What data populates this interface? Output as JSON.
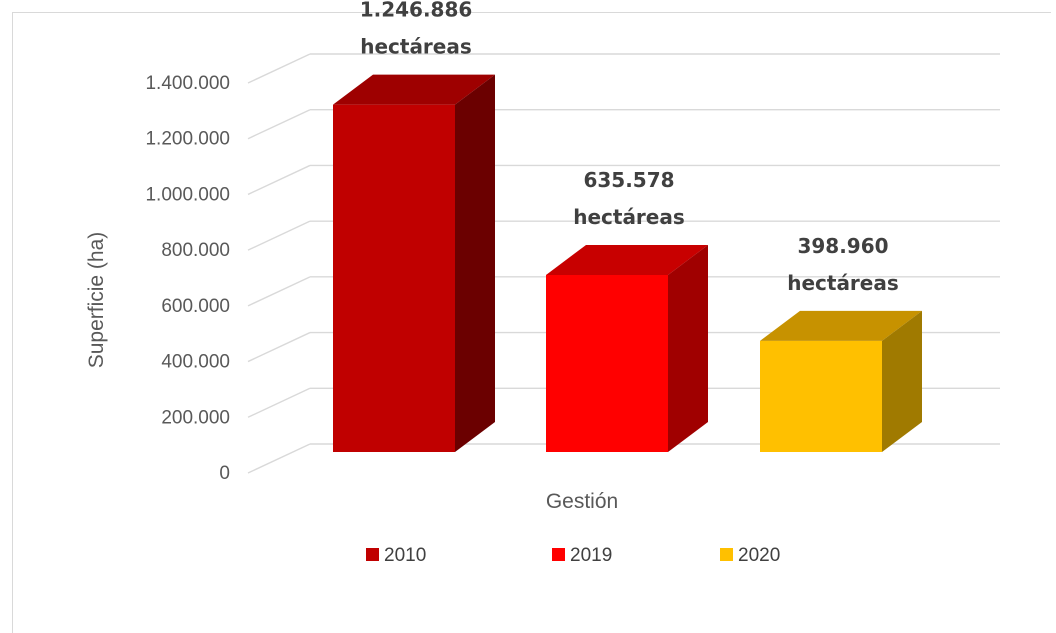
{
  "chart_data": {
    "type": "bar",
    "style": "3d-column",
    "categories": [
      "2010",
      "2019",
      "2020"
    ],
    "values": [
      1246886,
      635578,
      398960
    ],
    "colors": {
      "2010": {
        "front": "#C00000",
        "top": "#9E0000",
        "side": "#6B0000"
      },
      "2019": {
        "front": "#FF0000",
        "top": "#C80000",
        "side": "#A00000"
      },
      "2020": {
        "front": "#FFC000",
        "top": "#C79200",
        "side": "#A07A00"
      }
    },
    "data_labels": [
      [
        "1.246.886",
        "hectáreas"
      ],
      [
        "635.578",
        "hectáreas"
      ],
      [
        "398.960",
        "hectáreas"
      ]
    ],
    "xlabel": "Gestión",
    "ylabel": "Superficie (ha)",
    "ylim": [
      0,
      1400000
    ],
    "yticks": [
      0,
      200000,
      400000,
      600000,
      800000,
      1000000,
      1200000,
      1400000
    ],
    "ytick_labels": [
      "0",
      "200.000",
      "400.000",
      "600.000",
      "800.000",
      "1.000.000",
      "1.200.000",
      "1.400.000"
    ],
    "legend": [
      "2010",
      "2019",
      "2020"
    ],
    "legend_position": "bottom",
    "grid": true
  }
}
